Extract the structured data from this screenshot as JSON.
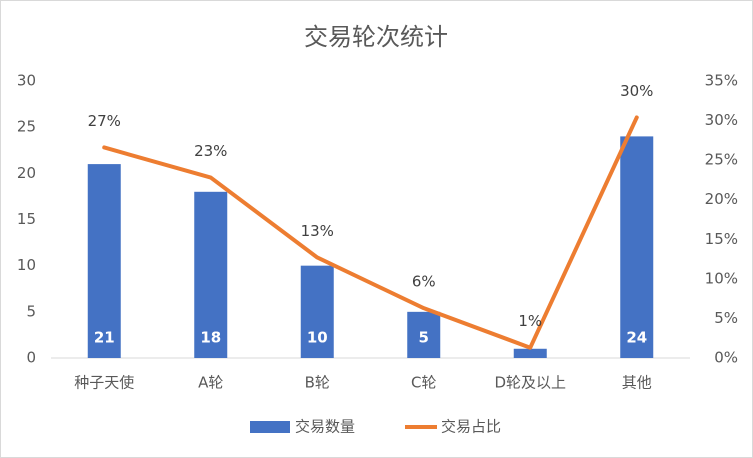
{
  "chart_data": {
    "type": "bar",
    "title": "交易轮次统计",
    "categories": [
      "种子天使",
      "A轮",
      "B轮",
      "C轮",
      "D轮及以上",
      "其他"
    ],
    "series": [
      {
        "name": "交易数量",
        "type": "bar",
        "color": "#4472c4",
        "values": [
          21,
          18,
          10,
          5,
          1,
          24
        ]
      },
      {
        "name": "交易占比",
        "type": "line",
        "axis": "y2",
        "color": "#ed7d31",
        "values": [
          26.6,
          22.8,
          12.7,
          6.3,
          1.3,
          30.4
        ],
        "value_labels": [
          "27%",
          "23%",
          "13%",
          "6%",
          "1%",
          "30%"
        ]
      }
    ],
    "ylim": [
      0,
      30
    ],
    "yticks": [
      0,
      5,
      10,
      15,
      20,
      25,
      30
    ],
    "y2lim": [
      0,
      35
    ],
    "y2ticks": [
      {
        "value": 0,
        "label": "0%"
      },
      {
        "value": 5,
        "label": "5%"
      },
      {
        "value": 10,
        "label": "10%"
      },
      {
        "value": 15,
        "label": "15%"
      },
      {
        "value": 20,
        "label": "20%"
      },
      {
        "value": 25,
        "label": "25%"
      },
      {
        "value": 30,
        "label": "30%"
      },
      {
        "value": 35,
        "label": "35%"
      }
    ],
    "grid": false,
    "legend": "bottom"
  }
}
